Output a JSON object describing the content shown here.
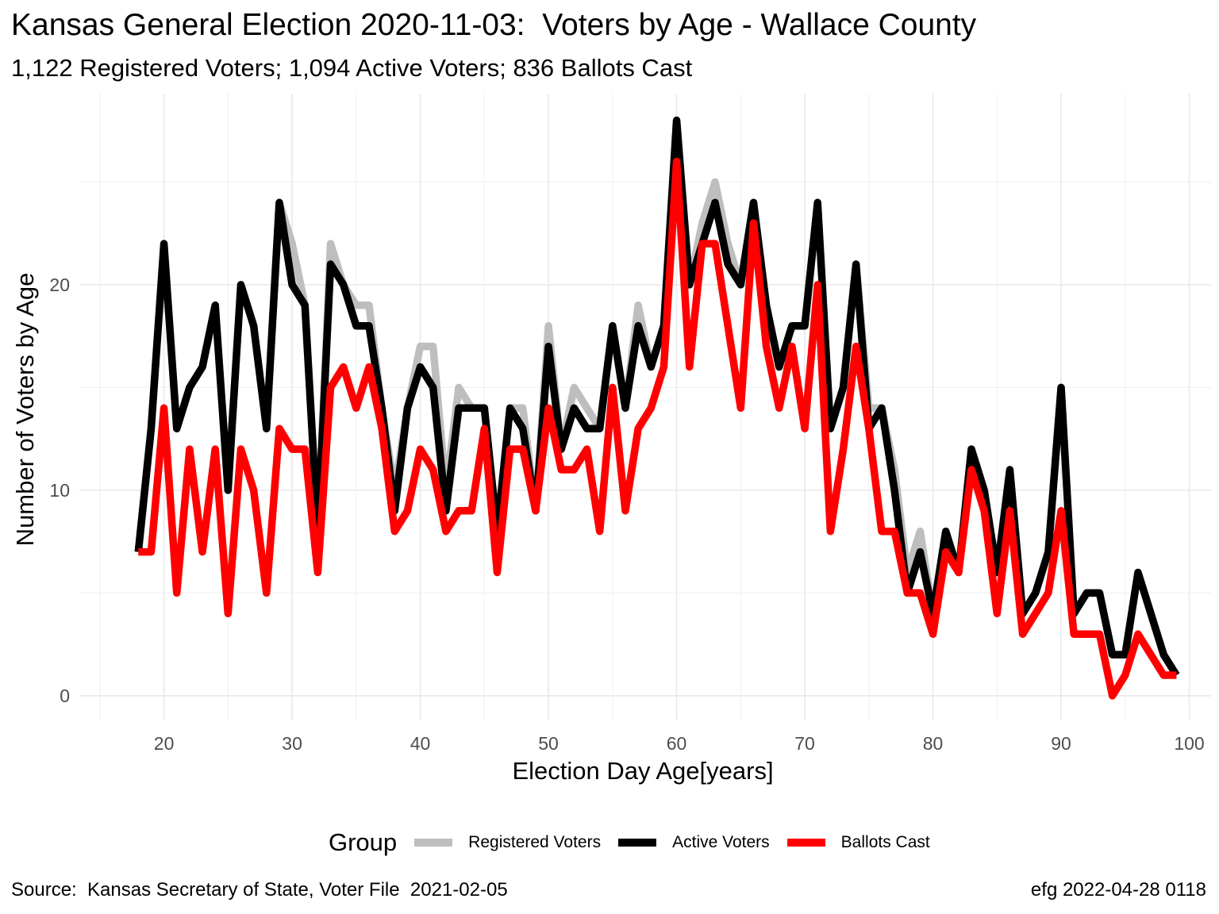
{
  "title": "Kansas General Election 2020-11-03:  Voters by Age - Wallace County",
  "subtitle": "1,122 Registered Voters; 1,094 Active Voters; 836 Ballots Cast",
  "caption_left": "Source:  Kansas Secretary of State, Voter File  2021-02-05",
  "caption_right": "efg 2022-04-28 0118",
  "legend": {
    "title": "Group",
    "items": [
      {
        "label": "Registered Voters",
        "color": "#bebebe"
      },
      {
        "label": "Active Voters",
        "color": "#000000"
      },
      {
        "label": "Ballots Cast",
        "color": "#ff0000"
      }
    ]
  },
  "chart_data": {
    "type": "line",
    "xlabel": "Election Day Age[years]",
    "ylabel": "Number of Voters by Age",
    "xlim": [
      13.4,
      101.7
    ],
    "ylim": [
      -1.2,
      29.3
    ],
    "x_ticks": [
      20,
      30,
      40,
      50,
      60,
      70,
      80,
      90,
      100
    ],
    "y_ticks": [
      0,
      10,
      20
    ],
    "grid": true,
    "legend_position": "bottom",
    "x": [
      18,
      19,
      20,
      21,
      22,
      23,
      24,
      25,
      26,
      27,
      28,
      29,
      30,
      31,
      32,
      33,
      34,
      35,
      36,
      37,
      38,
      39,
      40,
      41,
      42,
      43,
      44,
      45,
      46,
      47,
      48,
      49,
      50,
      51,
      52,
      53,
      54,
      55,
      56,
      57,
      58,
      59,
      60,
      61,
      62,
      63,
      64,
      65,
      66,
      67,
      68,
      69,
      70,
      71,
      72,
      73,
      74,
      75,
      76,
      77,
      78,
      79,
      80,
      81,
      82,
      83,
      84,
      85,
      86,
      87,
      88,
      89,
      90,
      91,
      92,
      93,
      94,
      95,
      96,
      97,
      98,
      99
    ],
    "series": [
      {
        "name": "Registered Voters",
        "color": "#bebebe",
        "values": [
          7,
          13,
          22,
          13,
          15,
          16,
          19,
          10,
          20,
          18,
          13,
          24,
          22,
          19,
          8,
          22,
          20,
          19,
          19,
          14,
          10,
          14,
          17,
          17,
          10,
          15,
          14,
          14,
          8,
          14,
          14,
          9,
          18,
          12,
          15,
          14,
          13,
          18,
          14,
          19,
          16,
          18,
          28,
          20,
          23,
          25,
          22,
          20,
          24,
          19,
          16,
          18,
          18,
          24,
          13,
          15,
          21,
          14,
          14,
          11,
          6,
          8,
          4,
          8,
          6,
          12,
          10,
          6,
          11,
          4,
          5,
          7,
          15,
          4,
          5,
          5,
          2,
          2,
          6,
          4,
          2,
          1
        ]
      },
      {
        "name": "Active Voters",
        "color": "#000000",
        "values": [
          7,
          13,
          22,
          13,
          15,
          16,
          19,
          10,
          20,
          18,
          13,
          24,
          20,
          19,
          8,
          21,
          20,
          18,
          18,
          14,
          9,
          14,
          16,
          15,
          9,
          14,
          14,
          14,
          8,
          14,
          13,
          9,
          17,
          12,
          14,
          13,
          13,
          18,
          14,
          18,
          16,
          18,
          28,
          20,
          22,
          24,
          21,
          20,
          24,
          19,
          16,
          18,
          18,
          24,
          13,
          15,
          21,
          13,
          14,
          10,
          5,
          7,
          4,
          8,
          6,
          12,
          10,
          6,
          11,
          4,
          5,
          7,
          15,
          4,
          5,
          5,
          2,
          2,
          6,
          4,
          2,
          1
        ]
      },
      {
        "name": "Ballots Cast",
        "color": "#ff0000",
        "values": [
          7,
          7,
          14,
          5,
          12,
          7,
          12,
          4,
          12,
          10,
          5,
          13,
          12,
          12,
          6,
          15,
          16,
          14,
          16,
          13,
          8,
          9,
          12,
          11,
          8,
          9,
          9,
          13,
          6,
          12,
          12,
          9,
          14,
          11,
          11,
          12,
          8,
          15,
          9,
          13,
          14,
          16,
          26,
          16,
          22,
          22,
          18,
          14,
          23,
          17,
          14,
          17,
          13,
          20,
          8,
          12,
          17,
          13,
          8,
          8,
          5,
          5,
          3,
          7,
          6,
          11,
          9,
          4,
          9,
          3,
          4,
          5,
          9,
          3,
          3,
          3,
          0,
          1,
          3,
          2,
          1,
          1
        ]
      }
    ]
  }
}
